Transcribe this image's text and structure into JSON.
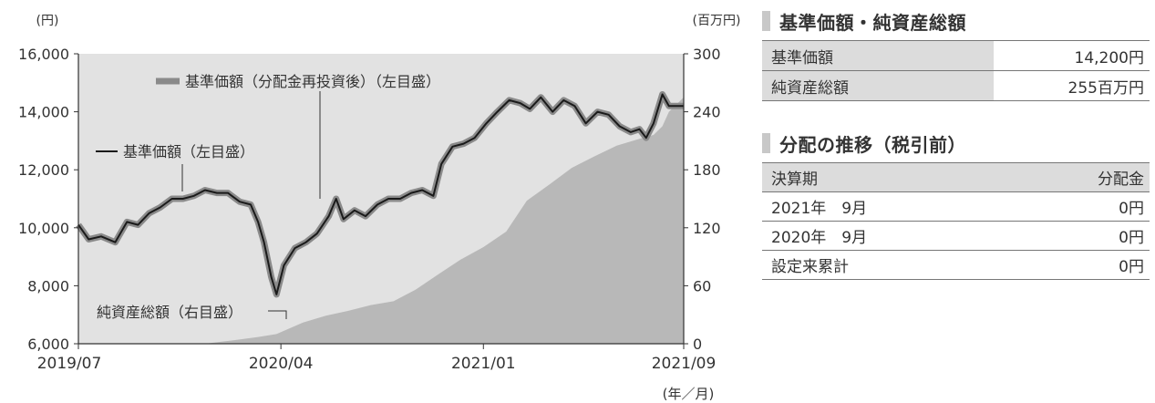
{
  "chart_data": {
    "type": "line",
    "left_unit": "(円)",
    "right_unit": "(百万円)",
    "x_unit": "(年／月)",
    "x_ticks": [
      "2019/07",
      "2020/04",
      "2021/01",
      "2021/09"
    ],
    "ylim_left": [
      6000,
      16000
    ],
    "yticks_left": [
      "6,000",
      "8,000",
      "10,000",
      "12,000",
      "14,000",
      "16,000"
    ],
    "ylim_right": [
      0,
      300
    ],
    "yticks_right": [
      "0",
      "60",
      "120",
      "180",
      "240",
      "300"
    ],
    "grid": false,
    "series": [
      {
        "name": "基準価額（分配金再投資後）（左目盛）",
        "axis": "left",
        "style": "thick-gray-line",
        "x": [
          "2019-07-01",
          "2019-07-15",
          "2019-08-01",
          "2019-08-20",
          "2019-09-05",
          "2019-09-20",
          "2019-10-05",
          "2019-10-20",
          "2019-11-05",
          "2019-11-20",
          "2019-12-05",
          "2019-12-20",
          "2020-01-05",
          "2020-01-20",
          "2020-02-05",
          "2020-02-20",
          "2020-03-01",
          "2020-03-09",
          "2020-03-19",
          "2020-03-26",
          "2020-04-05",
          "2020-04-20",
          "2020-05-05",
          "2020-05-20",
          "2020-06-05",
          "2020-06-15",
          "2020-06-25",
          "2020-07-10",
          "2020-07-25",
          "2020-08-10",
          "2020-08-25",
          "2020-09-10",
          "2020-09-25",
          "2020-10-10",
          "2020-10-25",
          "2020-11-05",
          "2020-11-20",
          "2020-12-05",
          "2020-12-20",
          "2021-01-05",
          "2021-01-20",
          "2021-02-05",
          "2021-02-20",
          "2021-03-05",
          "2021-03-20",
          "2021-04-05",
          "2021-04-20",
          "2021-05-05",
          "2021-05-20",
          "2021-06-05",
          "2021-06-20",
          "2021-07-05",
          "2021-07-20",
          "2021-08-01",
          "2021-08-10",
          "2021-08-20",
          "2021-09-01",
          "2021-09-10",
          "2021-09-30"
        ],
        "values": [
          10100,
          9600,
          9700,
          9500,
          10200,
          10100,
          10500,
          10700,
          11000,
          11000,
          11100,
          11300,
          11200,
          11200,
          10900,
          10800,
          10200,
          9500,
          8300,
          7700,
          8700,
          9300,
          9500,
          9800,
          10400,
          11000,
          10300,
          10600,
          10400,
          10800,
          11000,
          11000,
          11200,
          11300,
          11100,
          12200,
          12800,
          12900,
          13100,
          13600,
          14000,
          14400,
          14300,
          14100,
          14500,
          14000,
          14400,
          14200,
          13600,
          14000,
          13900,
          13500,
          13300,
          13400,
          13100,
          13600,
          14600,
          14200,
          14200
        ]
      },
      {
        "name": "基準価額（左目盛）",
        "axis": "left",
        "style": "thin-black-line",
        "same_as": "基準価額（分配金再投資後）（左目盛）"
      },
      {
        "name": "純資産総額（右目盛）",
        "axis": "right",
        "style": "gray-area",
        "x": [
          "2019-07-01",
          "2019-12-20",
          "2020-01-10",
          "2020-02-01",
          "2020-03-01",
          "2020-03-26",
          "2020-04-10",
          "2020-05-01",
          "2020-06-01",
          "2020-07-01",
          "2020-08-01",
          "2020-09-01",
          "2020-10-01",
          "2020-11-01",
          "2020-12-01",
          "2021-01-01",
          "2021-02-01",
          "2021-03-01",
          "2021-04-01",
          "2021-05-01",
          "2021-06-01",
          "2021-07-01",
          "2021-08-01",
          "2021-08-20",
          "2021-09-01",
          "2021-09-10",
          "2021-09-30"
        ],
        "values": [
          0,
          0,
          2,
          4,
          7,
          10,
          15,
          22,
          29,
          34,
          40,
          44,
          56,
          72,
          87,
          100,
          116,
          148,
          165,
          182,
          194,
          205,
          212,
          216,
          225,
          240,
          255
        ]
      }
    ],
    "annotations": {
      "reinvest_label": "基準価額（分配金再投資後）（左目盛）",
      "nav_label": "基準価額（左目盛）",
      "assets_label": "純資産総額（右目盛）"
    }
  },
  "panel": {
    "section1_title": "基準価額・純資産総額",
    "nav_label": "基準価額",
    "nav_value": "14,200円",
    "assets_label": "純資産総額",
    "assets_value": "255百万円",
    "section2_title": "分配の推移（税引前）",
    "dist_header_period": "決算期",
    "dist_header_amount": "分配金",
    "distributions": [
      {
        "period": "2021年　9月",
        "amount": "0円"
      },
      {
        "period": "2020年　9月",
        "amount": "0円"
      },
      {
        "period": "設定来累計",
        "amount": "0円"
      }
    ]
  }
}
